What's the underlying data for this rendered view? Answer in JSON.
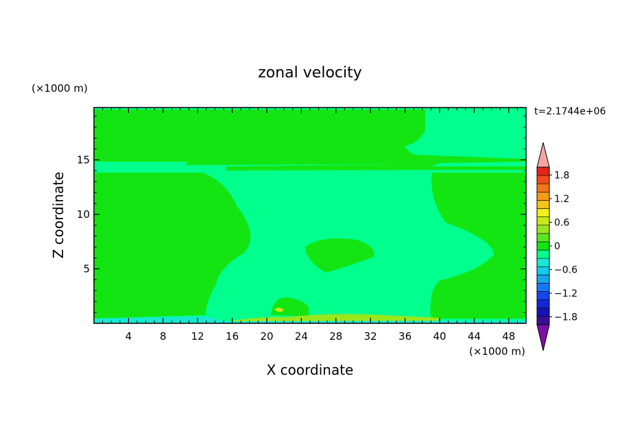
{
  "chart_data": {
    "type": "heatmap",
    "title": "zonal velocity",
    "xlabel": "X coordinate",
    "ylabel": "Z coordinate",
    "x_unit": "(×1000 m)",
    "y_unit": "(×1000 m)",
    "time_label": "t=2.1744e+06",
    "xlim": [
      0,
      50
    ],
    "ylim": [
      0,
      19.8
    ],
    "x_ticks": [
      4,
      8,
      12,
      16,
      20,
      24,
      28,
      32,
      36,
      40,
      44,
      48
    ],
    "y_ticks": [
      5,
      10,
      15
    ],
    "colorbar": {
      "min": -2.0,
      "max": 2.0,
      "step": 0.2,
      "tick_labels": [
        "1.8",
        "1.2",
        "0.6",
        "0",
        "−0.6",
        "−1.2",
        "−1.8"
      ],
      "colors": [
        "#7B0FA8",
        "#3A0F96",
        "#1712B5",
        "#1525D6",
        "#1646F2",
        "#1678F5",
        "#14A6F0",
        "#12CBE8",
        "#18E8D2",
        "#00FF8C",
        "#13E513",
        "#5AE61E",
        "#9AE61C",
        "#C7E81A",
        "#F2EE1A",
        "#F5C21A",
        "#F59A1A",
        "#F5741A",
        "#F24A1A",
        "#E6241A",
        "#F4A5A2"
      ]
    },
    "regions": [
      {
        "name": "background",
        "level": "-0.2 to 0",
        "color": "#00FF8C"
      },
      {
        "name": "upper-band",
        "level": "0 to 0.2",
        "color": "#13E513"
      },
      {
        "name": "lower-left-region",
        "level": "0 to 0.2",
        "color": "#13E513"
      },
      {
        "name": "right-region",
        "level": "0 to 0.2",
        "color": "#13E513"
      },
      {
        "name": "center-blob",
        "level": "0 to 0.2",
        "color": "#13E513"
      },
      {
        "name": "surface-cell",
        "level": "0 to 0.2",
        "color": "#13E513"
      },
      {
        "name": "near-surface-strip",
        "level": "0.2 to 0.6",
        "color": "#9AE61C"
      },
      {
        "name": "surface-edge",
        "level": "-0.6 to -0.2",
        "color": "#18E8D2"
      }
    ]
  }
}
